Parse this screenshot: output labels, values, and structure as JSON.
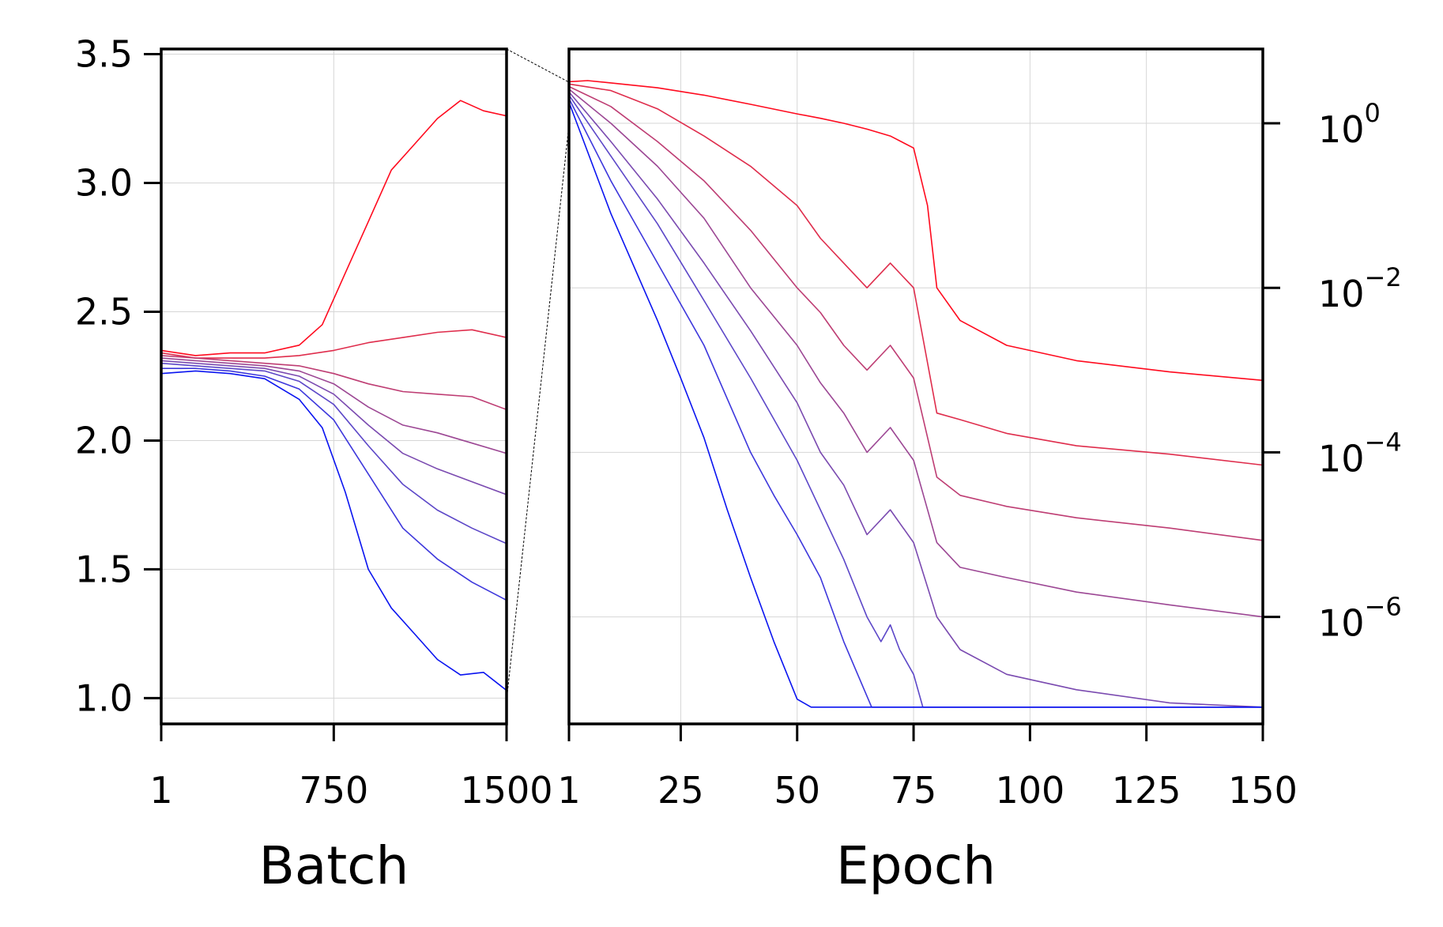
{
  "chart_data": [
    {
      "type": "line",
      "xlabel": "Batch",
      "ylabel": "",
      "xlim": [
        1,
        1500
      ],
      "ylim": [
        0.9,
        3.52
      ],
      "x_ticks": [
        {
          "value": 1,
          "label": "1"
        },
        {
          "value": 750,
          "label": "750"
        },
        {
          "value": 1500,
          "label": "1500"
        }
      ],
      "y_ticks": [
        {
          "value": 1.0,
          "label": "1.0"
        },
        {
          "value": 1.5,
          "label": "1.5"
        },
        {
          "value": 2.0,
          "label": "2.0"
        },
        {
          "value": 2.5,
          "label": "2.5"
        },
        {
          "value": 3.0,
          "label": "3.0"
        },
        {
          "value": 3.5,
          "label": "3.5"
        }
      ],
      "grid": true,
      "series": [
        {
          "color": "#ff0a1e",
          "x": [
            1,
            150,
            300,
            450,
            600,
            700,
            800,
            900,
            1000,
            1100,
            1200,
            1300,
            1400,
            1500
          ],
          "y": [
            2.35,
            2.33,
            2.34,
            2.34,
            2.37,
            2.45,
            2.65,
            2.85,
            3.05,
            3.15,
            3.25,
            3.32,
            3.28,
            3.26
          ]
        },
        {
          "color": "#df2d4c",
          "x": [
            1,
            150,
            300,
            450,
            600,
            750,
            900,
            1050,
            1200,
            1350,
            1500
          ],
          "y": [
            2.34,
            2.32,
            2.32,
            2.32,
            2.33,
            2.35,
            2.38,
            2.4,
            2.42,
            2.43,
            2.4
          ]
        },
        {
          "color": "#be3d73",
          "x": [
            1,
            150,
            300,
            450,
            600,
            750,
            900,
            1050,
            1200,
            1350,
            1500
          ],
          "y": [
            2.33,
            2.32,
            2.31,
            2.3,
            2.29,
            2.26,
            2.22,
            2.19,
            2.18,
            2.17,
            2.12
          ]
        },
        {
          "color": "#9c4794",
          "x": [
            1,
            150,
            300,
            450,
            600,
            750,
            900,
            1050,
            1200,
            1350,
            1500
          ],
          "y": [
            2.32,
            2.31,
            2.3,
            2.29,
            2.27,
            2.22,
            2.13,
            2.06,
            2.03,
            1.99,
            1.95
          ]
        },
        {
          "color": "#7a4ab0",
          "x": [
            1,
            150,
            300,
            450,
            600,
            750,
            900,
            1050,
            1200,
            1350,
            1500
          ],
          "y": [
            2.31,
            2.3,
            2.29,
            2.28,
            2.25,
            2.18,
            2.06,
            1.95,
            1.89,
            1.84,
            1.79
          ]
        },
        {
          "color": "#5c47c8",
          "x": [
            1,
            150,
            300,
            450,
            600,
            750,
            900,
            1050,
            1200,
            1350,
            1500
          ],
          "y": [
            2.3,
            2.29,
            2.28,
            2.27,
            2.23,
            2.14,
            1.98,
            1.83,
            1.73,
            1.66,
            1.6
          ]
        },
        {
          "color": "#3d37dc",
          "x": [
            1,
            150,
            300,
            450,
            600,
            750,
            900,
            1050,
            1200,
            1350,
            1500
          ],
          "y": [
            2.28,
            2.28,
            2.27,
            2.25,
            2.2,
            2.08,
            1.87,
            1.66,
            1.54,
            1.45,
            1.38
          ]
        },
        {
          "color": "#0a14f0",
          "x": [
            1,
            150,
            300,
            450,
            600,
            700,
            800,
            900,
            1000,
            1100,
            1200,
            1300,
            1400,
            1500
          ],
          "y": [
            2.26,
            2.27,
            2.26,
            2.24,
            2.16,
            2.05,
            1.8,
            1.5,
            1.35,
            1.25,
            1.15,
            1.09,
            1.1,
            1.03
          ]
        }
      ]
    },
    {
      "type": "line",
      "xlabel": "Epoch",
      "ylabel": "",
      "xscale": "linear",
      "yscale": "log",
      "xlim": [
        1,
        150
      ],
      "ylim": [
        5e-08,
        8
      ],
      "x_ticks": [
        {
          "value": 1,
          "label": "1"
        },
        {
          "value": 25,
          "label": "25"
        },
        {
          "value": 50,
          "label": "50"
        },
        {
          "value": 75,
          "label": "75"
        },
        {
          "value": 100,
          "label": "100"
        },
        {
          "value": 125,
          "label": "125"
        },
        {
          "value": 150,
          "label": "150"
        }
      ],
      "y_ticks": [
        {
          "value": 1,
          "base": "10",
          "exponent": "0"
        },
        {
          "value": 0.01,
          "base": "10",
          "exponent": "−2"
        },
        {
          "value": 0.0001,
          "base": "10",
          "exponent": "−4"
        },
        {
          "value": 1e-06,
          "base": "10",
          "exponent": "−6"
        }
      ],
      "y_ticks_side": "right",
      "grid": true,
      "series": [
        {
          "color": "#ff0a1e",
          "x": [
            1,
            5,
            10,
            20,
            30,
            40,
            50,
            55,
            60,
            65,
            70,
            75,
            78,
            80,
            85,
            95,
            110,
            130,
            150
          ],
          "y": [
            3.2,
            3.3,
            3.1,
            2.7,
            2.2,
            1.7,
            1.3,
            1.15,
            1.0,
            0.85,
            0.7,
            0.5,
            0.1,
            0.01,
            0.004,
            0.002,
            0.0013,
            0.00095,
            0.00075
          ]
        },
        {
          "color": "#df2d4c",
          "x": [
            1,
            10,
            20,
            30,
            40,
            50,
            55,
            60,
            65,
            70,
            75,
            80,
            85,
            95,
            110,
            130,
            150
          ],
          "y": [
            3.0,
            2.5,
            1.5,
            0.7,
            0.3,
            0.1,
            0.04,
            0.02,
            0.01,
            0.02,
            0.01,
            0.0003,
            0.00025,
            0.00017,
            0.00012,
            9.5e-05,
            7e-05
          ]
        },
        {
          "color": "#be3d73",
          "x": [
            1,
            10,
            20,
            30,
            40,
            50,
            55,
            60,
            65,
            70,
            75,
            80,
            85,
            95,
            110,
            130,
            150
          ],
          "y": [
            2.8,
            1.6,
            0.6,
            0.2,
            0.05,
            0.01,
            0.005,
            0.002,
            0.001,
            0.002,
            0.0008,
            5e-05,
            3e-05,
            2.2e-05,
            1.6e-05,
            1.2e-05,
            8.5e-06
          ]
        },
        {
          "color": "#9c4794",
          "x": [
            1,
            10,
            20,
            30,
            40,
            50,
            55,
            60,
            65,
            70,
            75,
            80,
            85,
            95,
            110,
            130,
            150
          ],
          "y": [
            2.6,
            1.0,
            0.3,
            0.07,
            0.01,
            0.002,
            0.0007,
            0.0003,
            0.0001,
            0.0002,
            8e-05,
            8e-06,
            4e-06,
            3e-06,
            2e-06,
            1.4e-06,
            1e-06
          ]
        },
        {
          "color": "#7a4ab0",
          "x": [
            1,
            10,
            20,
            30,
            40,
            50,
            55,
            60,
            65,
            70,
            75,
            80,
            85,
            95,
            110,
            130,
            150
          ],
          "y": [
            2.4,
            0.6,
            0.12,
            0.02,
            0.003,
            0.0004,
            0.0001,
            4e-05,
            1e-05,
            2e-05,
            8e-06,
            1e-06,
            4e-07,
            2e-07,
            1.3e-07,
            9e-08,
            8e-08
          ]
        },
        {
          "color": "#5c47c8",
          "x": [
            1,
            10,
            20,
            30,
            40,
            50,
            55,
            60,
            65,
            68,
            70,
            72,
            75,
            77,
            80,
            90,
            120,
            150
          ],
          "y": [
            2.2,
            0.4,
            0.06,
            0.007,
            0.0008,
            8e-05,
            2e-05,
            5e-06,
            1e-06,
            5e-07,
            8e-07,
            4e-07,
            2e-07,
            8e-08,
            8e-08,
            8e-08,
            8e-08,
            8e-08
          ]
        },
        {
          "color": "#3d37dc",
          "x": [
            1,
            10,
            20,
            30,
            40,
            45,
            50,
            55,
            60,
            63,
            66,
            68,
            70,
            90,
            120,
            150
          ],
          "y": [
            2.0,
            0.2,
            0.02,
            0.002,
            0.0001,
            3e-05,
            1e-05,
            3e-06,
            5e-07,
            2e-07,
            8e-08,
            8e-08,
            8e-08,
            8e-08,
            8e-08,
            8e-08
          ]
        },
        {
          "color": "#0a14f0",
          "x": [
            1,
            10,
            20,
            25,
            30,
            35,
            40,
            45,
            50,
            53,
            55,
            70,
            100,
            150
          ],
          "y": [
            1.8,
            0.08,
            0.004,
            0.0008,
            0.00015,
            2e-05,
            3e-06,
            5e-07,
            1e-07,
            8e-08,
            8e-08,
            8e-08,
            8e-08,
            8e-08
          ]
        }
      ]
    }
  ]
}
